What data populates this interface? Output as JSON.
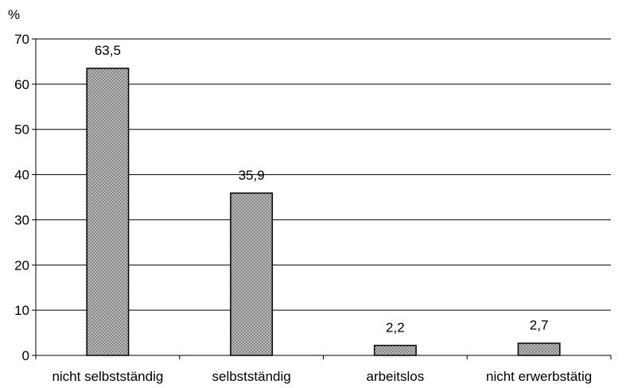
{
  "chart_data": {
    "type": "bar",
    "title": "",
    "xlabel": "",
    "ylabel": "%",
    "ylim": [
      0,
      70
    ],
    "yticks": [
      0,
      10,
      20,
      30,
      40,
      50,
      60,
      70
    ],
    "grid": true,
    "categories": [
      "nicht selbstständig",
      "selbstständig",
      "arbeitslos",
      "nicht erwerbstätig"
    ],
    "values": [
      63.5,
      35.9,
      2.2,
      2.7
    ],
    "value_labels": [
      "63,5",
      "35,9",
      "2,2",
      "2,7"
    ],
    "colors": {
      "bar_fill": "#c8c8c8",
      "bar_pattern": "#7a7a7a",
      "bar_stroke": "#000000",
      "grid": "#000000",
      "axis": "#000000"
    }
  }
}
